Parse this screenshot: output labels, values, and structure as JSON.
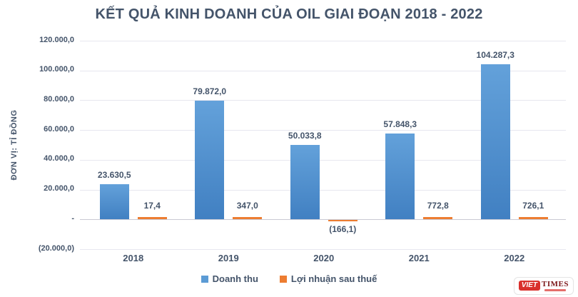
{
  "title": "KẾT QUẢ KINH DOANH CỦA OIL GIAI ĐOẠN 2018 - 2022",
  "chart_data": {
    "type": "bar",
    "title": "KẾT QUẢ KINH DOANH CỦA OIL GIAI ĐOẠN 2018 - 2022",
    "ylabel": "ĐƠN VỊ: TỈ ĐỒNG",
    "xlabel": "",
    "categories": [
      "2018",
      "2019",
      "2020",
      "2021",
      "2022"
    ],
    "series": [
      {
        "name": "Doanh thu",
        "color": "#5B9BD5",
        "values": [
          23630.5,
          79872.0,
          50033.8,
          57848.3,
          104287.3
        ],
        "labels": [
          "23.630,5",
          "79.872,0",
          "50.033,8",
          "57.848,3",
          "104.287,3"
        ]
      },
      {
        "name": "Lợi nhuận sau thuế",
        "color": "#ED7D31",
        "values": [
          17.4,
          347.0,
          -166.1,
          772.8,
          726.1
        ],
        "labels": [
          "17,4",
          "347,0",
          "(166,1)",
          "772,8",
          "726,1"
        ]
      }
    ],
    "ylim": [
      -20000,
      120000
    ],
    "yticks": [
      {
        "value": 120000,
        "label": "120.000,0"
      },
      {
        "value": 100000,
        "label": "100.000,0"
      },
      {
        "value": 80000,
        "label": "80.000,0"
      },
      {
        "value": 60000,
        "label": "60.000,0"
      },
      {
        "value": 40000,
        "label": "40.000,0"
      },
      {
        "value": 20000,
        "label": "20.000,0"
      },
      {
        "value": 0,
        "label": "-"
      },
      {
        "value": -20000,
        "label": "(20.000,0)"
      }
    ],
    "grid": true,
    "legend_position": "bottom"
  },
  "colors": {
    "title_text": "#44546A",
    "axis_text": "#44546A",
    "gridline": "#E7E7EF",
    "zero_line": "#C9CAD4",
    "bar_blue": "#5B9BD5",
    "bar_orange": "#ED7D31",
    "logo_red": "#D9302C",
    "logo_maroon": "#7B1517"
  },
  "logo": {
    "part1": "VIET",
    "part2": "TIMES"
  }
}
